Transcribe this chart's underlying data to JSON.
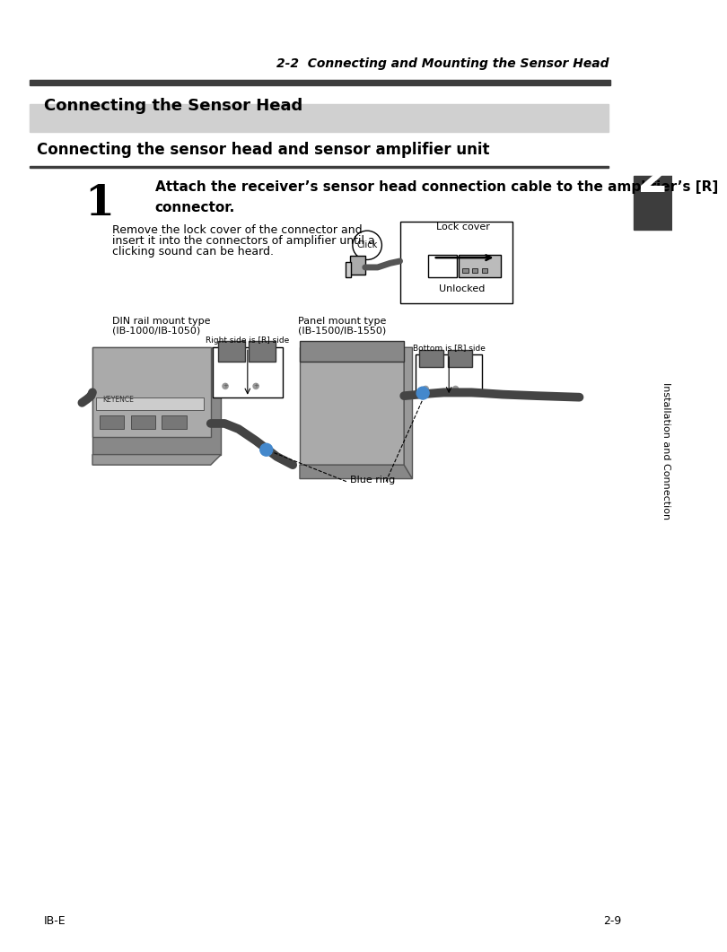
{
  "page_title": "2-2  Connecting and Mounting the Sensor Head",
  "section_title": "Connecting the Sensor Head",
  "subsection_title": "Connecting the sensor head and sensor amplifier unit",
  "step_number": "1",
  "step_text_line1": "Attach the receiver’s sensor head connection cable to the amplifier’s [R]",
  "step_text_line2": "connector.",
  "body_text_1": "Remove the lock cover of the connector and",
  "body_text_2": "insert it into the connectors of amplifier until a",
  "body_text_3": "clicking sound can be heard.",
  "sidebar_number": "2",
  "sidebar_label": "Installation and Connection",
  "footer_left": "IB-E",
  "footer_right": "2-9",
  "din_label_1": "DIN rail mount type",
  "din_label_2": "(IB-1000/IB-1050)",
  "panel_label_1": "Panel mount type",
  "panel_label_2": "(IB-1500/IB-1550)",
  "right_side_label": "Right side is [R] side",
  "bottom_side_label": "Bottom is [R] side",
  "blue_ring_label": "Blue ring",
  "lock_cover_label": "Lock cover",
  "unlocked_label": "Unlocked",
  "click_label": "Click",
  "bg_color": "#ffffff",
  "header_bar_color": "#3d3d3d",
  "section_bg_color": "#d0d0d0",
  "sidebar_bg_color": "#3d3d3d",
  "sidebar_text_color": "#ffffff",
  "title_fontsize": 10,
  "section_fontsize": 13,
  "subsection_fontsize": 12,
  "step_text_fontsize": 11,
  "body_fontsize": 9,
  "label_fontsize": 8,
  "footer_fontsize": 9
}
